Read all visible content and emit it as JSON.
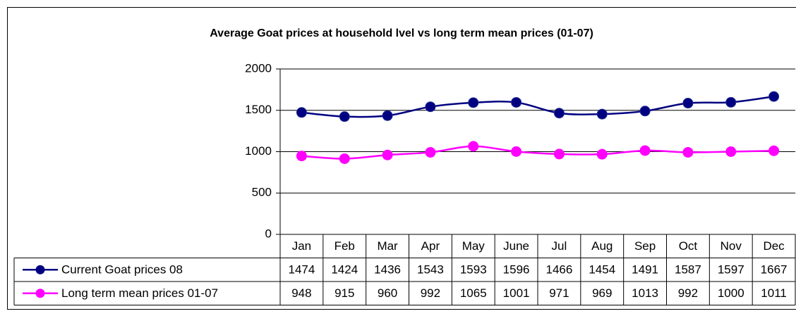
{
  "chart_data": {
    "type": "line",
    "title": "Average Goat prices at household lvel vs long term mean prices (01-07)",
    "categories": [
      "Jan",
      "Feb",
      "Mar",
      "Apr",
      "May",
      "June",
      "Jul",
      "Aug",
      "Sep",
      "Oct",
      "Nov",
      "Dec"
    ],
    "series": [
      {
        "name": "Current Goat prices 08",
        "color": "#000080",
        "values": [
          1474,
          1424,
          1436,
          1543,
          1593,
          1596,
          1466,
          1454,
          1491,
          1587,
          1597,
          1667
        ]
      },
      {
        "name": "Long term mean prices 01-07",
        "color": "#ff00ff",
        "values": [
          948,
          915,
          960,
          992,
          1065,
          1001,
          971,
          969,
          1013,
          992,
          1000,
          1011
        ]
      }
    ],
    "ylim": [
      0,
      2000
    ],
    "yticks": [
      0,
      500,
      1000,
      1500,
      2000
    ],
    "grid": true,
    "data_table": true
  }
}
